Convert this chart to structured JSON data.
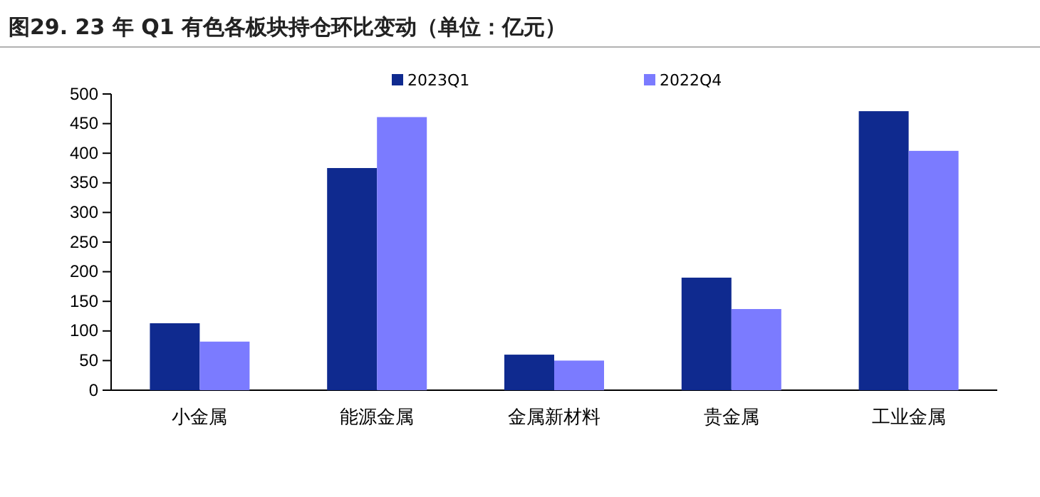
{
  "chart_data": {
    "type": "bar",
    "title": "图29. 23 年 Q1 有色各板块持仓环比变动（单位：亿元）",
    "categories": [
      "小金属",
      "能源金属",
      "金属新材料",
      "贵金属",
      "工业金属"
    ],
    "series": [
      {
        "name": "2023Q1",
        "color": "#0f2a8f",
        "values": [
          113,
          375,
          60,
          190,
          471
        ]
      },
      {
        "name": "2022Q4",
        "color": "#7b7bff",
        "values": [
          82,
          461,
          50,
          137,
          404
        ]
      }
    ],
    "ylim": [
      0,
      500
    ],
    "yticks": [
      0,
      50,
      100,
      150,
      200,
      250,
      300,
      350,
      400,
      450,
      500
    ],
    "grid": false,
    "legend": "top"
  }
}
